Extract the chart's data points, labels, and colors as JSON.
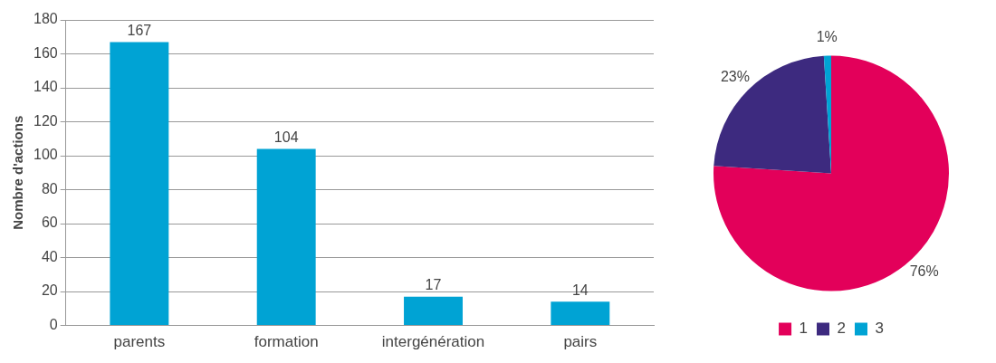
{
  "chart_data": [
    {
      "type": "bar",
      "ylabel": "Nombre d'actions",
      "categories": [
        "parents",
        "formation",
        "intergénération",
        "pairs"
      ],
      "values": [
        167,
        104,
        17,
        14
      ],
      "color": "#00a3d4",
      "ylim": [
        0,
        180
      ],
      "yticks": [
        0,
        20,
        40,
        60,
        80,
        100,
        120,
        140,
        160,
        180
      ],
      "grid": "y",
      "data_labels": true,
      "legend": false
    },
    {
      "type": "pie",
      "categories": [
        "1",
        "2",
        "3"
      ],
      "values": [
        76,
        23,
        1
      ],
      "colors": [
        "#e3005a",
        "#3d2a7f",
        "#00a3d4"
      ],
      "value_labels": [
        "76%",
        "23%",
        "1%"
      ],
      "legend": "bottom"
    }
  ]
}
